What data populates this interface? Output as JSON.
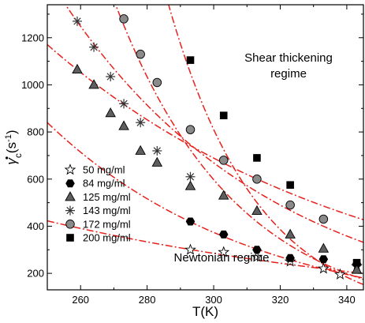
{
  "chart_data": {
    "type": "scatter",
    "xlabel": "T(K)",
    "ylabel_main": "γ",
    "ylabel_sub": "c",
    "ylabel_unit": "(s",
    "ylabel_exp": "-1",
    "ylabel_close": ")",
    "xlim": [
      250,
      345
    ],
    "ylim": [
      130,
      1340
    ],
    "x_ticks": [
      260,
      280,
      300,
      320,
      340
    ],
    "y_ticks": [
      200,
      400,
      600,
      800,
      1000,
      1200
    ],
    "legend_position": "bottom-left",
    "fit_color": "#e8201b",
    "annotations": [
      {
        "id": "shear",
        "lines": [
          "Shear thickening",
          "regime"
        ]
      },
      {
        "id": "newtonian",
        "lines": [
          "Newtonian regime"
        ]
      }
    ],
    "series": [
      {
        "name": "50 mg/ml",
        "marker": "star",
        "x": [
          293,
          303,
          313,
          323,
          333,
          338,
          343
        ],
        "y": [
          300,
          290,
          270,
          250,
          220,
          195,
          230
        ],
        "fit": {
          "A": 3046.9,
          "k": 0.0079
        }
      },
      {
        "name": "84 mg/ml",
        "marker": "hexagon",
        "x": [
          293,
          303,
          313,
          323,
          333,
          343
        ],
        "y": [
          420,
          365,
          300,
          265,
          260,
          240
        ],
        "fit": {
          "A": 48211,
          "k": 0.0162
        }
      },
      {
        "name": "125 mg/ml",
        "marker": "triangle",
        "x": [
          259,
          264,
          269,
          273,
          278,
          283,
          293,
          303,
          313,
          323,
          333,
          343
        ],
        "y": [
          1065,
          1000,
          880,
          825,
          720,
          670,
          570,
          530,
          465,
          365,
          305,
          215
        ],
        "fit": {
          "A": 16570,
          "k": 0.0106
        }
      },
      {
        "name": "143 mg/ml",
        "marker": "asterisk",
        "x": [
          259,
          264,
          269,
          273,
          278,
          283,
          293
        ],
        "y": [
          1270,
          1160,
          1035,
          920,
          840,
          720,
          610
        ],
        "fit": {
          "A": 72100,
          "k": 0.0156
        }
      },
      {
        "name": "172 mg/ml",
        "marker": "circle",
        "x": [
          273,
          278,
          283,
          293,
          303,
          313,
          323,
          333
        ],
        "y": [
          1280,
          1130,
          1010,
          810,
          680,
          600,
          490,
          430
        ],
        "fit": {
          "A": 2220000,
          "k": 0.0274
        }
      },
      {
        "name": "200 mg/ml",
        "marker": "square",
        "x": [
          293,
          303,
          313,
          323,
          343
        ],
        "y": [
          1105,
          870,
          690,
          575,
          245
        ],
        "fit": {
          "A": 55270000,
          "k": 0.0371
        }
      }
    ]
  }
}
